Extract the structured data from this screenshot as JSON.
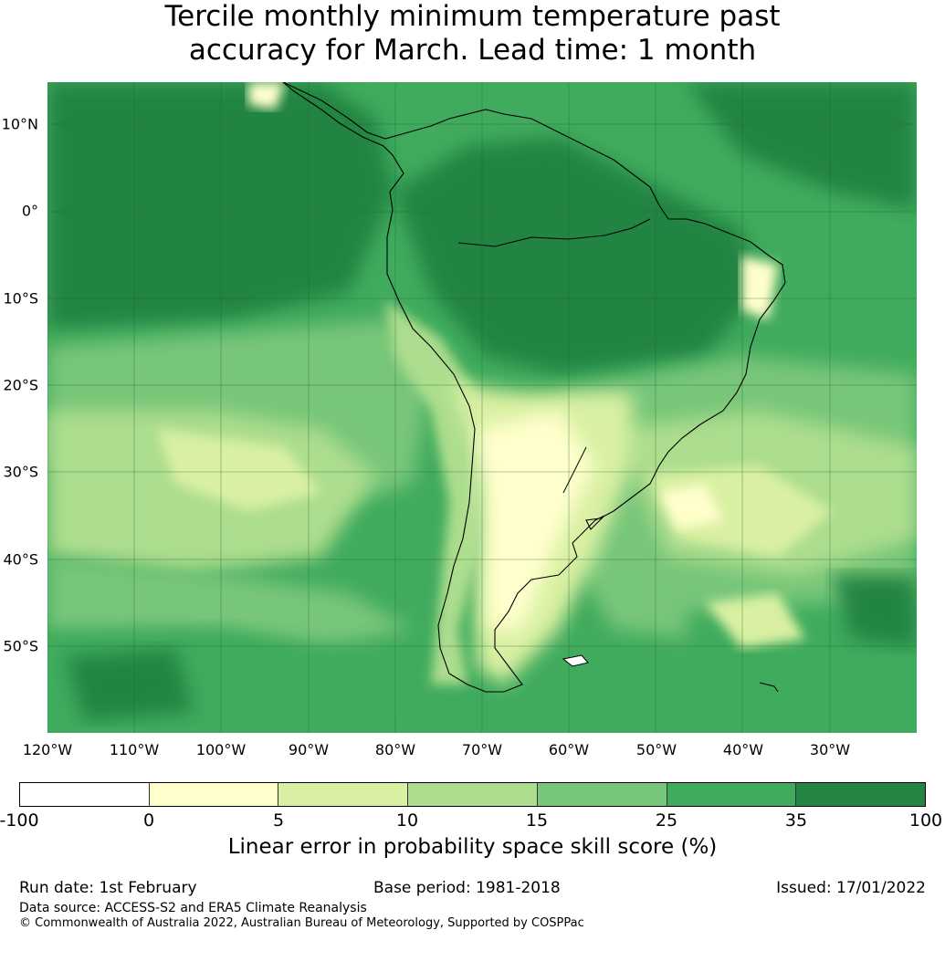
{
  "title": {
    "line1": "Tercile monthly minimum temperature past",
    "line2": "accuracy for March. Lead time: 1 month"
  },
  "map": {
    "latitude_labels": [
      "10°N",
      "0°",
      "10°S",
      "20°S",
      "30°S",
      "40°S",
      "50°S"
    ],
    "longitude_labels": [
      "120°W",
      "110°W",
      "100°W",
      "90°W",
      "80°W",
      "70°W",
      "60°W",
      "50°W",
      "40°W",
      "30°W"
    ],
    "ocean_color": "#41ab5d",
    "coastline_color": "#000000"
  },
  "colorbar": {
    "tick_labels": [
      "-100",
      "0",
      "5",
      "10",
      "15",
      "25",
      "35",
      "100"
    ],
    "colors": [
      "#ffffff",
      "#ffffcc",
      "#d9f0a3",
      "#addd8e",
      "#78c679",
      "#41ab5d",
      "#238443"
    ],
    "label": "Linear error in probability space skill score (%)"
  },
  "footer": {
    "run_date": "Run date: 1st February",
    "base_period": "Base period: 1981-2018",
    "issued": "Issued: 17/01/2022",
    "data_source": "Data source: ACCESS-S2 and ERA5 Climate Reanalysis",
    "copyright": "© Commonwealth of Australia 2022, Australian Bureau of Meteorology, Supported by COSPPac"
  }
}
